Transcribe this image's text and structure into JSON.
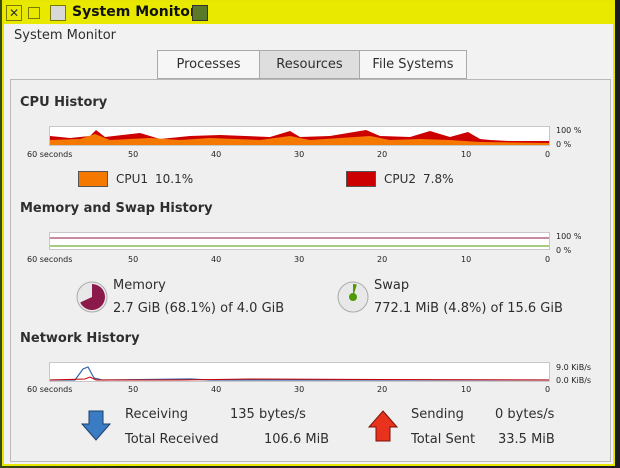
{
  "window": {
    "title": "System Monitor",
    "app_header": "System Monitor"
  },
  "tabs": [
    {
      "label": "Processes",
      "active": false
    },
    {
      "label": "Resources",
      "active": true
    },
    {
      "label": "File Systems",
      "active": false
    }
  ],
  "time_axis": [
    "60 seconds",
    "50",
    "40",
    "30",
    "20",
    "10",
    "0"
  ],
  "cpu": {
    "title": "CPU History",
    "scale_top": "100 %",
    "scale_bottom": "0 %",
    "cpus": [
      {
        "name": "CPU1",
        "value": "10.1%",
        "color": "#f57900"
      },
      {
        "name": "CPU2",
        "value": "7.8%",
        "color": "#cc0000"
      }
    ]
  },
  "memory": {
    "title": "Memory and Swap History",
    "scale_top": "100 %",
    "scale_bottom": "0 %",
    "mem_label": "Memory",
    "mem_value": "2.7 GiB (68.1%) of 4.0 GiB",
    "mem_fraction": 0.681,
    "mem_color": "#8b1a4a",
    "swap_label": "Swap",
    "swap_value": "772.1 MiB (4.8%) of 15.6 GiB",
    "swap_fraction": 0.048,
    "swap_color": "#4e9a06"
  },
  "network": {
    "title": "Network History",
    "scale_top": "9.0 KiB/s",
    "scale_bottom": "0.0 KiB/s",
    "receiving_label": "Receiving",
    "receiving_value": "135 bytes/s",
    "total_received_label": "Total Received",
    "total_received_value": "106.6 MiB",
    "sending_label": "Sending",
    "sending_value": "0 bytes/s",
    "total_sent_label": "Total Sent",
    "total_sent_value": "33.5 MiB",
    "receive_color": "#3465a4",
    "send_color": "#cc0000"
  }
}
